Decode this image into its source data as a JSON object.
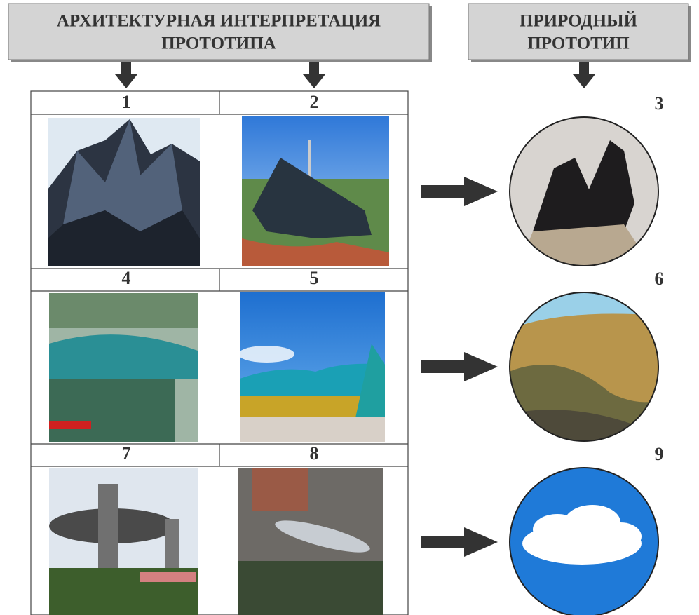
{
  "headers": {
    "architectural": [
      "АРХИТЕКТУРНАЯ ИНТЕРПРЕТАЦИЯ",
      "ПРОТОТИПА"
    ],
    "natural": [
      "ПРИРОДНЫЙ",
      "ПРОТОТИП"
    ]
  },
  "rows": [
    {
      "architecture": [
        "1",
        "2"
      ],
      "prototype": "3"
    },
    {
      "architecture": [
        "4",
        "5"
      ],
      "prototype": "6"
    },
    {
      "architecture": [
        "7",
        "8"
      ],
      "prototype": "9"
    }
  ]
}
